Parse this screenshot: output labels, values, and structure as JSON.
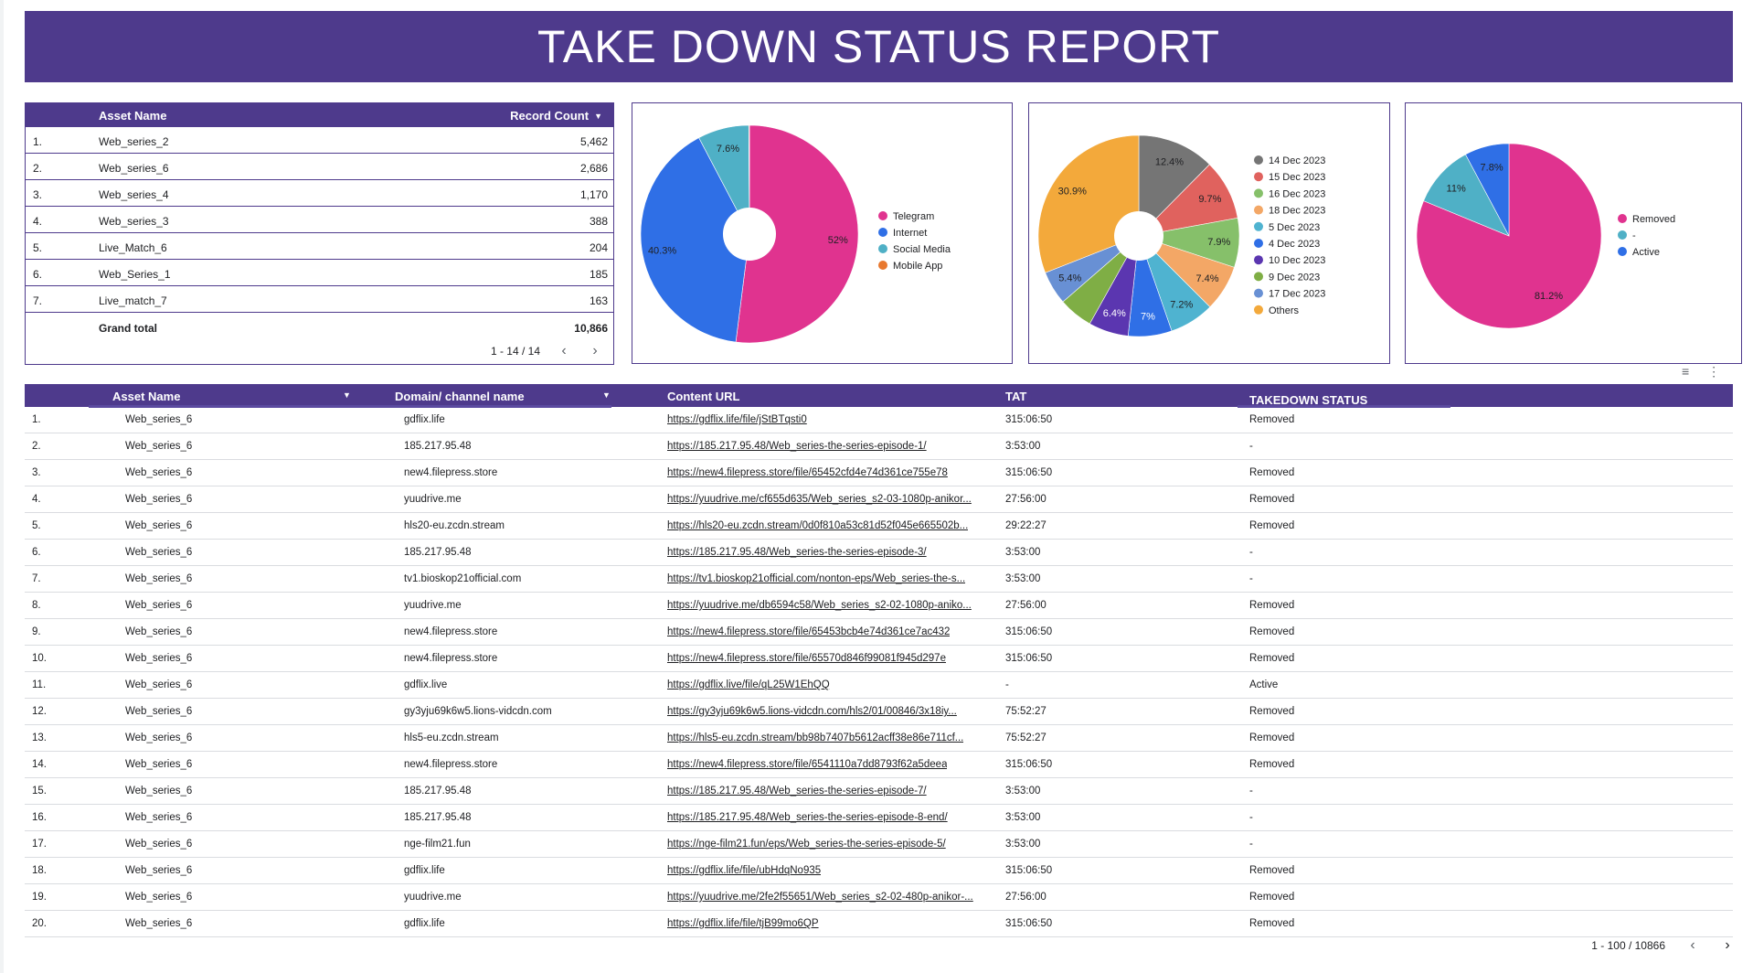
{
  "title": "TAKE DOWN STATUS REPORT",
  "summary": {
    "headers": {
      "asset": "Asset Name",
      "count": "Record Count"
    },
    "rows": [
      {
        "idx": "1.",
        "name": "Web_series_2",
        "count": "5,462"
      },
      {
        "idx": "2.",
        "name": "Web_series_6",
        "count": "2,686"
      },
      {
        "idx": "3.",
        "name": "Web_series_4",
        "count": "1,170"
      },
      {
        "idx": "4.",
        "name": "Web_series_3",
        "count": "388"
      },
      {
        "idx": "5.",
        "name": "Live_Match_6",
        "count": "204"
      },
      {
        "idx": "6.",
        "name": "Web_Series_1",
        "count": "185"
      },
      {
        "idx": "7.",
        "name": "Live_match_7",
        "count": "163"
      }
    ],
    "total_label": "Grand total",
    "total_value": "10,866",
    "pagination": "1 - 14 / 14"
  },
  "chart_data": [
    {
      "type": "pie",
      "donut": true,
      "slices": [
        {
          "label": "Telegram",
          "value": 52,
          "display": "52%",
          "color": "#e0338f"
        },
        {
          "label": "Internet",
          "value": 40.3,
          "display": "40.3%",
          "color": "#2f6fe6"
        },
        {
          "label": "Social Media",
          "value": 7.6,
          "display": "7.6%",
          "color": "#4fb0c6"
        },
        {
          "label": "Mobile App",
          "value": 0.1,
          "display": "",
          "color": "#e8782f"
        }
      ],
      "legend": [
        "Telegram",
        "Internet",
        "Social Media",
        "Mobile App"
      ],
      "legend_position": "right"
    },
    {
      "type": "pie",
      "donut": true,
      "slices": [
        {
          "label": "14 Dec 2023",
          "value": 12.4,
          "display": "12.4%",
          "color": "#757575"
        },
        {
          "label": "15 Dec 2023",
          "value": 9.7,
          "display": "9.7%",
          "color": "#e0625e"
        },
        {
          "label": "16 Dec 2023",
          "value": 7.9,
          "display": "7.9%",
          "color": "#86c06a"
        },
        {
          "label": "18 Dec 2023",
          "value": 7.4,
          "display": "7.4%",
          "color": "#f3a766"
        },
        {
          "label": "5 Dec 2023",
          "value": 7.2,
          "display": "7.2%",
          "color": "#4fb3d0"
        },
        {
          "label": "4 Dec 2023",
          "value": 7,
          "display": "7%",
          "color": "#2f6fe6"
        },
        {
          "label": "10 Dec 2023",
          "value": 6.4,
          "display": "6.4%",
          "color": "#5b36b0"
        },
        {
          "label": "9 Dec 2023",
          "value": 5.5,
          "display": "",
          "color": "#7fae45"
        },
        {
          "label": "17 Dec 2023",
          "value": 5.4,
          "display": "5.4%",
          "color": "#6890d4"
        },
        {
          "label": "Others",
          "value": 30.9,
          "display": "30.9%",
          "color": "#f3a93b"
        }
      ],
      "legend": [
        "14 Dec 2023",
        "15 Dec 2023",
        "16 Dec 2023",
        "18 Dec 2023",
        "5 Dec 2023",
        "4 Dec 2023",
        "10 Dec 2023",
        "9 Dec 2023",
        "17 Dec 2023",
        "Others"
      ],
      "legend_position": "right"
    },
    {
      "type": "pie",
      "donut": false,
      "slices": [
        {
          "label": "Removed",
          "value": 81.2,
          "display": "81.2%",
          "color": "#e0338f"
        },
        {
          "label": "-",
          "value": 11,
          "display": "11%",
          "color": "#4fb0c6"
        },
        {
          "label": "Active",
          "value": 7.8,
          "display": "7.8%",
          "color": "#2f6fe6"
        }
      ],
      "legend": [
        "Removed",
        "-",
        "Active"
      ],
      "legend_position": "right"
    }
  ],
  "table": {
    "headers": {
      "asset": "Asset Name",
      "domain": "Domain/ channel name",
      "url": "Content URL",
      "tat": "TAT",
      "status": "TAKEDOWN STATUS"
    },
    "rows": [
      {
        "idx": "1.",
        "asset": "Web_series_6",
        "domain": "gdflix.life",
        "url": "https://gdflix.life/file/jStBTqsti0",
        "tat": "315:06:50",
        "status": "Removed"
      },
      {
        "idx": "2.",
        "asset": "Web_series_6",
        "domain": "185.217.95.48",
        "url": "https://185.217.95.48/Web_series-the-series-episode-1/",
        "tat": "3:53:00",
        "status": "-"
      },
      {
        "idx": "3.",
        "asset": "Web_series_6",
        "domain": "new4.filepress.store",
        "url": "https://new4.filepress.store/file/65452cfd4e74d361ce755e78",
        "tat": "315:06:50",
        "status": "Removed"
      },
      {
        "idx": "4.",
        "asset": "Web_series_6",
        "domain": "yuudrive.me",
        "url": "https://yuudrive.me/cf655d635/Web_series_s2-03-1080p-anikor...",
        "tat": "27:56:00",
        "status": "Removed"
      },
      {
        "idx": "5.",
        "asset": "Web_series_6",
        "domain": "hls20-eu.zcdn.stream",
        "url": "https://hls20-eu.zcdn.stream/0d0f810a53c81d52f045e665502b...",
        "tat": "29:22:27",
        "status": "Removed"
      },
      {
        "idx": "6.",
        "asset": "Web_series_6",
        "domain": "185.217.95.48",
        "url": "https://185.217.95.48/Web_series-the-series-episode-3/",
        "tat": "3:53:00",
        "status": "-"
      },
      {
        "idx": "7.",
        "asset": "Web_series_6",
        "domain": "tv1.bioskop21official.com",
        "url": "https://tv1.bioskop21official.com/nonton-eps/Web_series-the-s...",
        "tat": "3:53:00",
        "status": "-"
      },
      {
        "idx": "8.",
        "asset": "Web_series_6",
        "domain": "yuudrive.me",
        "url": "https://yuudrive.me/db6594c58/Web_series_s2-02-1080p-aniko...",
        "tat": "27:56:00",
        "status": "Removed"
      },
      {
        "idx": "9.",
        "asset": "Web_series_6",
        "domain": "new4.filepress.store",
        "url": "https://new4.filepress.store/file/65453bcb4e74d361ce7ac432",
        "tat": "315:06:50",
        "status": "Removed"
      },
      {
        "idx": "10.",
        "asset": "Web_series_6",
        "domain": "new4.filepress.store",
        "url": "https://new4.filepress.store/file/65570d846f99081f945d297e",
        "tat": "315:06:50",
        "status": "Removed"
      },
      {
        "idx": "11.",
        "asset": "Web_series_6",
        "domain": "gdflix.live",
        "url": "https://gdflix.live/file/qL25W1EhQQ",
        "tat": "-",
        "status": "Active"
      },
      {
        "idx": "12.",
        "asset": "Web_series_6",
        "domain": "gy3yju69k6w5.lions-vidcdn.com",
        "url": "https://gy3yju69k6w5.lions-vidcdn.com/hls2/01/00846/3x18iy...",
        "tat": "75:52:27",
        "status": "Removed"
      },
      {
        "idx": "13.",
        "asset": "Web_series_6",
        "domain": "hls5-eu.zcdn.stream",
        "url": "https://hls5-eu.zcdn.stream/bb98b7407b5612acff38e86e711cf...",
        "tat": "75:52:27",
        "status": "Removed"
      },
      {
        "idx": "14.",
        "asset": "Web_series_6",
        "domain": "new4.filepress.store",
        "url": "https://new4.filepress.store/file/6541110a7dd8793f62a5deea",
        "tat": "315:06:50",
        "status": "Removed"
      },
      {
        "idx": "15.",
        "asset": "Web_series_6",
        "domain": "185.217.95.48",
        "url": "https://185.217.95.48/Web_series-the-series-episode-7/",
        "tat": "3:53:00",
        "status": "-"
      },
      {
        "idx": "16.",
        "asset": "Web_series_6",
        "domain": "185.217.95.48",
        "url": "https://185.217.95.48/Web_series-the-series-episode-8-end/",
        "tat": "3:53:00",
        "status": "-"
      },
      {
        "idx": "17.",
        "asset": "Web_series_6",
        "domain": "nge-film21.fun",
        "url": "https://nge-film21.fun/eps/Web_series-the-series-episode-5/",
        "tat": "3:53:00",
        "status": "-"
      },
      {
        "idx": "18.",
        "asset": "Web_series_6",
        "domain": "gdflix.life",
        "url": "https://gdflix.life/file/ubHdqNo935",
        "tat": "315:06:50",
        "status": "Removed"
      },
      {
        "idx": "19.",
        "asset": "Web_series_6",
        "domain": "yuudrive.me",
        "url": "https://yuudrive.me/2fe2f55651/Web_series_s2-02-480p-anikor-...",
        "tat": "27:56:00",
        "status": "Removed"
      },
      {
        "idx": "20.",
        "asset": "Web_series_6",
        "domain": "gdflix.life",
        "url": "https://gdflix.life/file/tjB99mo6QP",
        "tat": "315:06:50",
        "status": "Removed"
      }
    ],
    "pagination": "1 - 100 / 10866"
  },
  "icons": {
    "prev": "chevron-left-icon",
    "next": "chevron-right-icon",
    "filter": "filter-icon",
    "more": "more-vert-icon"
  }
}
